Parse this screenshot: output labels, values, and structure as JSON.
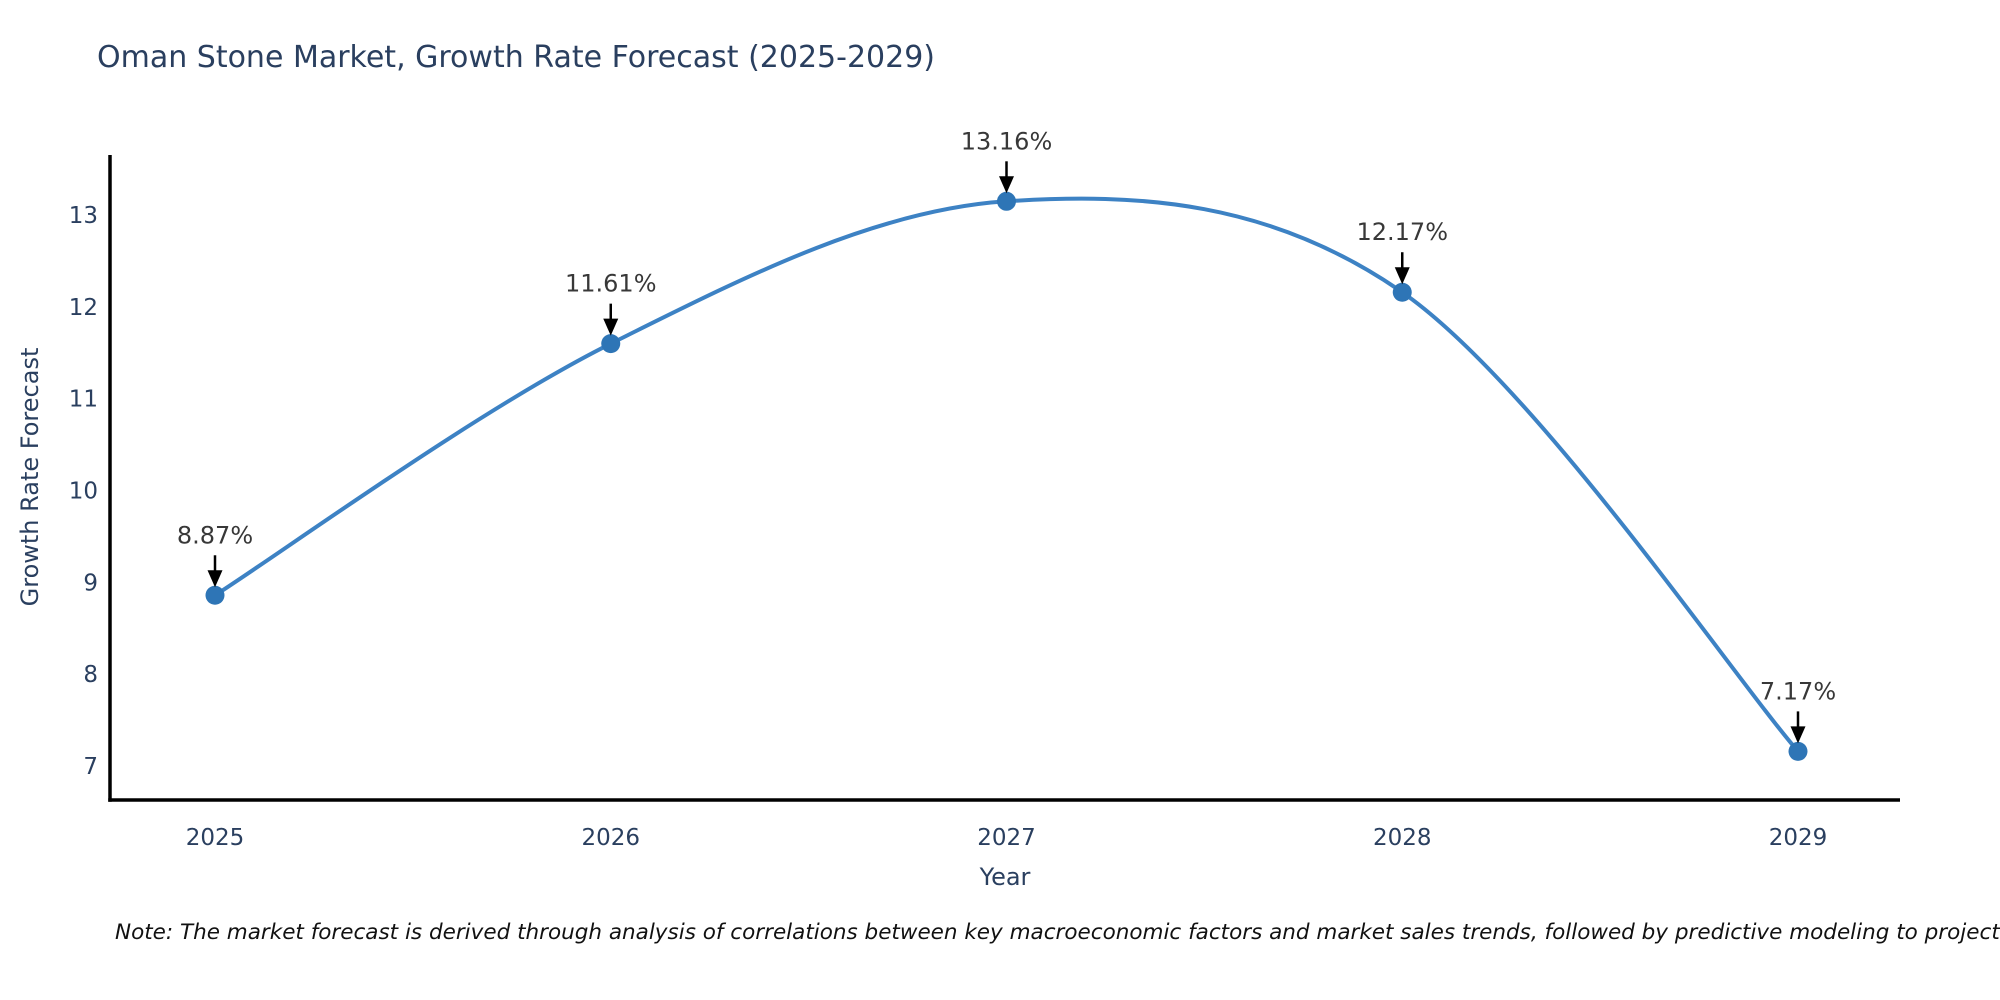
{
  "title": "Oman Stone Market, Growth Rate Forecast (2025-2029)",
  "note": "Note: The market forecast is derived through analysis of correlations between key macroeconomic factors and market sales trends, followed by predictive modeling to project future sales",
  "chart_data": {
    "type": "line",
    "line_shape": "spline",
    "title": "Oman Stone Market, Growth Rate Forecast (2025-2029)",
    "xlabel": "Year",
    "ylabel": "Growth Rate Forecast",
    "x": [
      2025,
      2026,
      2027,
      2028,
      2029
    ],
    "y": [
      8.87,
      11.61,
      13.16,
      12.17,
      7.17
    ],
    "point_labels": [
      "8.87%",
      "11.61%",
      "13.16%",
      "12.17%",
      "7.17%"
    ],
    "x_tick_labels": [
      "2025",
      "2026",
      "2027",
      "2028",
      "2029"
    ],
    "y_ticks": [
      7,
      8,
      9,
      10,
      11,
      12,
      13
    ],
    "ylim": [
      6.64,
      13.66
    ],
    "grid": false,
    "legend": "none",
    "markers": true,
    "annotations_have_arrows": true,
    "colors": {
      "line": "#3d82c4",
      "marker": "#2e75b6",
      "axis_line": "#000000",
      "axis_text": "#2a3f5f",
      "annotation_text": "#383838",
      "annotation_arrow": "#000000",
      "note_text": "#111111",
      "background": "#ffffff"
    }
  }
}
